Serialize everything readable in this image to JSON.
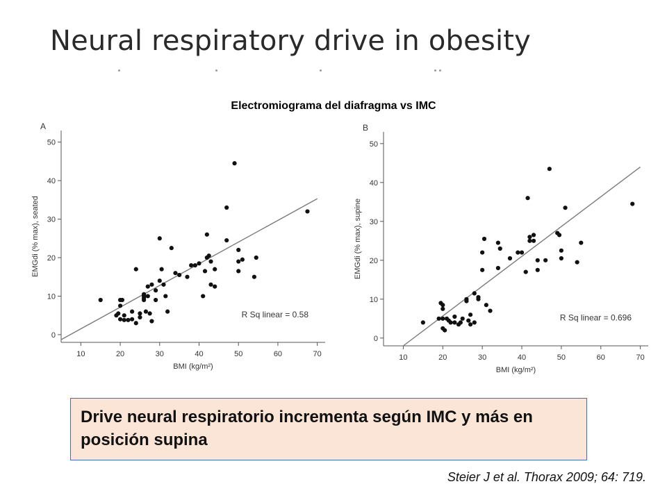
{
  "slide": {
    "title": "Neural respiratory drive in obesity",
    "subtitle": "Electromiograma del diafragma vs IMC",
    "conclusion": "Drive neural respiratorio incrementa según IMC y más en posición supina",
    "citation": "Steier J et al. Thorax 2009; 64: 719."
  },
  "chart_data": [
    {
      "type": "scatter",
      "panel_label": "A",
      "xlabel": "BMI (kg/m²)",
      "ylabel": "EMGdi (% max), seated",
      "xlim": [
        5,
        72
      ],
      "ylim": [
        -2,
        53
      ],
      "xticks": [
        10,
        20,
        30,
        40,
        50,
        60,
        70
      ],
      "yticks": [
        0,
        10,
        20,
        30,
        40,
        50
      ],
      "annotation": "R Sq linear = 0.58",
      "trendline": [
        [
          5,
          -1.3
        ],
        [
          70,
          35.3
        ]
      ],
      "points": [
        [
          15,
          9
        ],
        [
          19,
          5
        ],
        [
          19.5,
          5.5
        ],
        [
          20,
          9
        ],
        [
          20,
          7.5
        ],
        [
          20,
          4
        ],
        [
          20.5,
          9
        ],
        [
          21,
          5
        ],
        [
          21,
          3.8
        ],
        [
          22,
          3.8
        ],
        [
          23,
          4
        ],
        [
          23,
          6
        ],
        [
          24,
          3
        ],
        [
          24,
          17
        ],
        [
          25,
          4.5
        ],
        [
          25,
          5.5
        ],
        [
          26,
          9.5
        ],
        [
          26,
          9
        ],
        [
          26,
          10
        ],
        [
          26,
          10.5
        ],
        [
          26.5,
          6
        ],
        [
          27,
          12.5
        ],
        [
          27,
          10
        ],
        [
          27.5,
          5.5
        ],
        [
          28,
          3.5
        ],
        [
          28,
          13
        ],
        [
          29,
          11.5
        ],
        [
          29,
          9
        ],
        [
          30,
          14
        ],
        [
          30,
          25
        ],
        [
          30.5,
          17
        ],
        [
          31,
          13
        ],
        [
          31.5,
          10
        ],
        [
          32,
          6
        ],
        [
          33,
          22.5
        ],
        [
          34,
          16
        ],
        [
          35,
          15.5
        ],
        [
          37,
          15
        ],
        [
          38,
          18
        ],
        [
          39,
          18
        ],
        [
          40,
          18.5
        ],
        [
          41,
          10
        ],
        [
          41.5,
          16.5
        ],
        [
          42,
          20
        ],
        [
          42,
          26
        ],
        [
          42.5,
          20.5
        ],
        [
          43,
          19
        ],
        [
          43,
          13
        ],
        [
          44,
          17
        ],
        [
          44,
          12.5
        ],
        [
          47,
          24.5
        ],
        [
          47,
          33
        ],
        [
          49,
          44.5
        ],
        [
          50,
          22
        ],
        [
          50,
          19
        ],
        [
          50,
          16.5
        ],
        [
          51,
          19.5
        ],
        [
          54,
          15
        ],
        [
          54.5,
          20
        ],
        [
          67.5,
          32
        ]
      ]
    },
    {
      "type": "scatter",
      "panel_label": "B",
      "xlabel": "BMI (kg/m²)",
      "ylabel": "EMGdi (% max), supine",
      "xlim": [
        5,
        72
      ],
      "ylim": [
        -2,
        53
      ],
      "xticks": [
        10,
        20,
        30,
        40,
        50,
        60,
        70
      ],
      "yticks": [
        0,
        10,
        20,
        30,
        40,
        50
      ],
      "annotation": "R Sq linear = 0.696",
      "trendline": [
        [
          10,
          -2
        ],
        [
          70,
          44
        ]
      ],
      "points": [
        [
          15,
          4
        ],
        [
          19,
          5
        ],
        [
          19.5,
          9
        ],
        [
          20,
          8.5
        ],
        [
          20,
          7.5
        ],
        [
          20,
          5
        ],
        [
          20,
          2.5
        ],
        [
          20.5,
          2
        ],
        [
          21,
          5
        ],
        [
          21.5,
          4.5
        ],
        [
          22,
          4
        ],
        [
          23,
          4
        ],
        [
          23,
          5.5
        ],
        [
          24,
          3.5
        ],
        [
          24.5,
          4
        ],
        [
          25,
          5
        ],
        [
          26,
          9.5
        ],
        [
          26,
          10
        ],
        [
          26.5,
          4.5
        ],
        [
          27,
          6
        ],
        [
          27,
          3.5
        ],
        [
          28,
          11.5
        ],
        [
          28,
          4
        ],
        [
          29,
          10.5
        ],
        [
          29,
          10
        ],
        [
          30,
          22
        ],
        [
          30,
          17.5
        ],
        [
          30.5,
          25.5
        ],
        [
          31,
          8.5
        ],
        [
          32,
          7
        ],
        [
          34,
          18
        ],
        [
          34,
          24.5
        ],
        [
          34.5,
          23
        ],
        [
          37,
          20.5
        ],
        [
          39,
          22
        ],
        [
          40,
          22
        ],
        [
          41,
          17
        ],
        [
          41.5,
          36
        ],
        [
          42,
          26
        ],
        [
          42,
          25
        ],
        [
          43,
          26.5
        ],
        [
          43,
          25
        ],
        [
          44,
          20
        ],
        [
          44,
          17.5
        ],
        [
          46,
          20
        ],
        [
          47,
          43.5
        ],
        [
          49,
          27
        ],
        [
          49.5,
          26.5
        ],
        [
          50,
          22.5
        ],
        [
          50,
          20.5
        ],
        [
          51,
          33.5
        ],
        [
          54,
          19.5
        ],
        [
          55,
          24.5
        ],
        [
          68,
          34.5
        ]
      ]
    }
  ]
}
